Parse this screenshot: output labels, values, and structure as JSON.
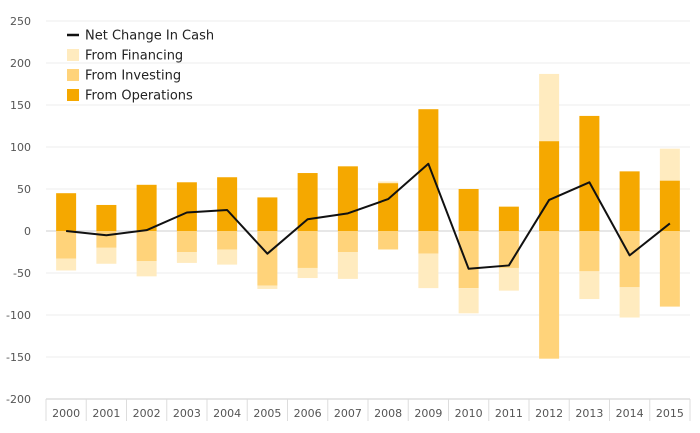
{
  "chart_data": {
    "type": "bar",
    "stacked": true,
    "categories": [
      "2000",
      "2001",
      "2002",
      "2003",
      "2004",
      "2005",
      "2006",
      "2007",
      "2008",
      "2009",
      "2010",
      "2011",
      "2012",
      "2013",
      "2014",
      "2015"
    ],
    "series": [
      {
        "name": "From Operations",
        "color": "#f5a800",
        "values": [
          45,
          31,
          55,
          58,
          64,
          40,
          69,
          77,
          57,
          145,
          50,
          29,
          107,
          137,
          71,
          60
        ]
      },
      {
        "name": "From Investing",
        "color": "#ffd37a",
        "values": [
          -33,
          -20,
          -36,
          -25,
          -22,
          -65,
          -44,
          -25,
          -22,
          -27,
          -68,
          -44,
          -152,
          -48,
          -67,
          -90
        ]
      },
      {
        "name": "From Financing",
        "color": "#ffebbf",
        "values": [
          -14,
          -19,
          -18,
          -13,
          -18,
          -4,
          -12,
          -32,
          2,
          -41,
          -30,
          -27,
          80,
          -33,
          -36,
          38
        ]
      }
    ],
    "line": {
      "name": "Net Change In Cash",
      "color": "#111111",
      "values": [
        0,
        -5,
        1,
        22,
        25,
        -27,
        14,
        21,
        38,
        80,
        -45,
        -41,
        37,
        58,
        -29,
        9
      ]
    },
    "legend": [
      {
        "name": "Net Change In Cash",
        "marker": "line",
        "color": "#111111"
      },
      {
        "name": "From Financing",
        "marker": "square",
        "color": "#ffebbf"
      },
      {
        "name": "From Investing",
        "marker": "square",
        "color": "#ffd37a"
      },
      {
        "name": "From Operations",
        "marker": "square",
        "color": "#f5a800"
      }
    ],
    "ylim": [
      -200,
      250
    ],
    "yticks": [
      250,
      200,
      150,
      100,
      50,
      0,
      -50,
      -100,
      -150,
      -200
    ],
    "grid": true,
    "legend_position": "top-left"
  }
}
